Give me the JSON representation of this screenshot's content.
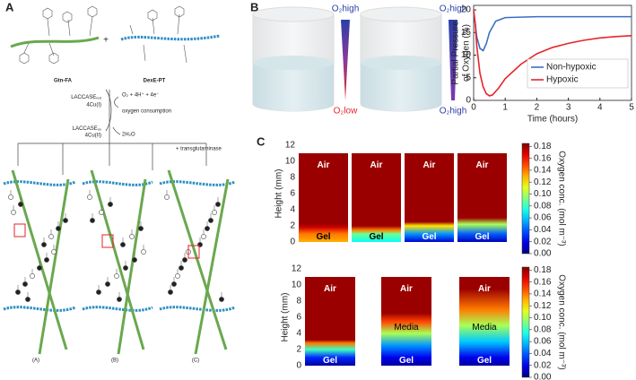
{
  "panel_labels": [
    "A",
    "B",
    "C"
  ],
  "scheme": {
    "polymer_1": "Gtn-FA",
    "polymer_2": "DexE-PT",
    "plus": "+",
    "enzyme_reduced": {
      "main": "LACCASE",
      "sub": "red"
    },
    "copper_reduced": "4Cu(I)",
    "reactants": "O₂ + 4H⁺ + 4e⁻",
    "process": "oxygen consumption",
    "enzyme_oxidized": {
      "main": "LACCASE",
      "sub": "ox"
    },
    "copper_oxidized": "4Cu(II)",
    "product": "2H₂O",
    "additive": "+ transglutaminase",
    "networks": [
      "(A)",
      "(B)",
      "(C)"
    ]
  },
  "vessels": [
    {
      "top": "O₂high",
      "bottom": "O₂low"
    },
    {
      "top": "O₂high",
      "bottom": "O₂high"
    }
  ],
  "chart_data": [
    {
      "type": "line",
      "xlabel": "Time (hours)",
      "ylabel": [
        "Partial Pressure",
        "of Oxygen (%)"
      ],
      "xlim": [
        0,
        5
      ],
      "xticks": [
        0,
        1,
        2,
        3,
        4,
        5
      ],
      "ylim": [
        0,
        21
      ],
      "yticks": [
        0,
        5,
        10,
        15,
        20
      ],
      "legend": "lower right",
      "series": [
        {
          "name": "Non-hypoxic",
          "color": "#3a6fc4",
          "x": [
            0,
            0.05,
            0.1,
            0.2,
            0.3,
            0.4,
            0.5,
            0.7,
            1,
            1.5,
            2,
            3,
            4,
            5
          ],
          "values": [
            19.5,
            17,
            14,
            11.5,
            11,
            12.5,
            15,
            17.5,
            18.3,
            18.4,
            18.5,
            18.5,
            18.5,
            18.5
          ]
        },
        {
          "name": "Hypoxic",
          "color": "#e8262a",
          "x": [
            0,
            0.05,
            0.1,
            0.2,
            0.3,
            0.4,
            0.5,
            0.6,
            0.8,
            1,
            1.5,
            2,
            2.5,
            3,
            3.5,
            4,
            4.5,
            5
          ],
          "values": [
            20,
            17,
            12,
            6,
            3,
            1.5,
            1,
            1.2,
            2.8,
            4.8,
            8,
            10.3,
            11.7,
            12.6,
            13.3,
            13.8,
            14.1,
            14.3
          ]
        }
      ]
    },
    {
      "type": "heatmap",
      "ylabel": "Height (mm)",
      "ylim": [
        0,
        12
      ],
      "yticks": [
        0,
        2,
        4,
        6,
        8,
        10,
        12
      ],
      "colorbar": {
        "label": "Oxygen conc. (mol m⁻³)",
        "lim": [
          0,
          0.185
        ],
        "ticks": [
          {
            "value": 0,
            "label": "0.00"
          },
          {
            "value": 0.02,
            "label": "0.02"
          },
          {
            "value": 0.04,
            "label": "0.04"
          },
          {
            "value": 0.06,
            "label": "0.06"
          },
          {
            "value": 0.08,
            "label": "0.08"
          },
          {
            "value": 0.1,
            "label": "0.10"
          },
          {
            "value": 0.12,
            "label": "0.12"
          },
          {
            "value": 0.14,
            "label": "0.14"
          },
          {
            "value": 0.16,
            "label": "0.16"
          },
          {
            "value": 0.18,
            "label": "0.18"
          }
        ]
      },
      "columns": [
        {
          "labels": [
            "Air",
            "Gel"
          ],
          "height": [
            0,
            1,
            1.8,
            2.2,
            11
          ],
          "conc": [
            0.13,
            0.14,
            0.17,
            0.18,
            0.18
          ]
        },
        {
          "labels": [
            "Air",
            "Gel"
          ],
          "height": [
            0,
            1,
            1.5,
            2,
            11
          ],
          "conc": [
            0.07,
            0.09,
            0.14,
            0.18,
            0.18
          ]
        },
        {
          "labels": [
            "Air",
            "Gel"
          ],
          "height": [
            0,
            1,
            2,
            2.5,
            11
          ],
          "conc": [
            0.015,
            0.05,
            0.12,
            0.18,
            0.18
          ]
        },
        {
          "labels": [
            "Air",
            "Gel"
          ],
          "height": [
            0,
            1,
            2.2,
            3,
            11
          ],
          "conc": [
            0.01,
            0.04,
            0.1,
            0.18,
            0.18
          ]
        }
      ]
    },
    {
      "type": "heatmap",
      "ylabel": "Height (mm)",
      "ylim": [
        0,
        12
      ],
      "yticks": [
        0,
        2,
        4,
        6,
        8,
        10,
        12
      ],
      "colorbar": {
        "label": "Oxygen conc. (mol m⁻³)",
        "lim": [
          0,
          0.185
        ],
        "ticks": [
          {
            "value": 0,
            "label": "0.00"
          },
          {
            "value": 0.02,
            "label": "0.02"
          },
          {
            "value": 0.04,
            "label": "0.04"
          },
          {
            "value": 0.06,
            "label": "0.06"
          },
          {
            "value": 0.08,
            "label": "0.08"
          },
          {
            "value": 0.1,
            "label": "0.10"
          },
          {
            "value": 0.12,
            "label": "0.12"
          },
          {
            "value": 0.14,
            "label": "0.14"
          },
          {
            "value": 0.16,
            "label": "0.16"
          },
          {
            "value": 0.18,
            "label": "0.18"
          }
        ]
      },
      "columns": [
        {
          "labels": [
            "Air",
            "Gel"
          ],
          "height": [
            0,
            1,
            2,
            2.8,
            3.2,
            11
          ],
          "conc": [
            0.005,
            0.03,
            0.08,
            0.14,
            0.18,
            0.18
          ]
        },
        {
          "labels": [
            "Air",
            "Media",
            "Gel"
          ],
          "height": [
            0,
            1,
            2.5,
            4,
            5.5,
            6.5,
            11
          ],
          "conc": [
            0.005,
            0.02,
            0.05,
            0.1,
            0.15,
            0.18,
            0.18
          ]
        },
        {
          "labels": [
            "Air",
            "Media",
            "Gel"
          ],
          "height": [
            0,
            1,
            3,
            5,
            7,
            9.5,
            11
          ],
          "conc": [
            0.005,
            0.02,
            0.06,
            0.1,
            0.14,
            0.18,
            0.18
          ]
        }
      ]
    }
  ]
}
